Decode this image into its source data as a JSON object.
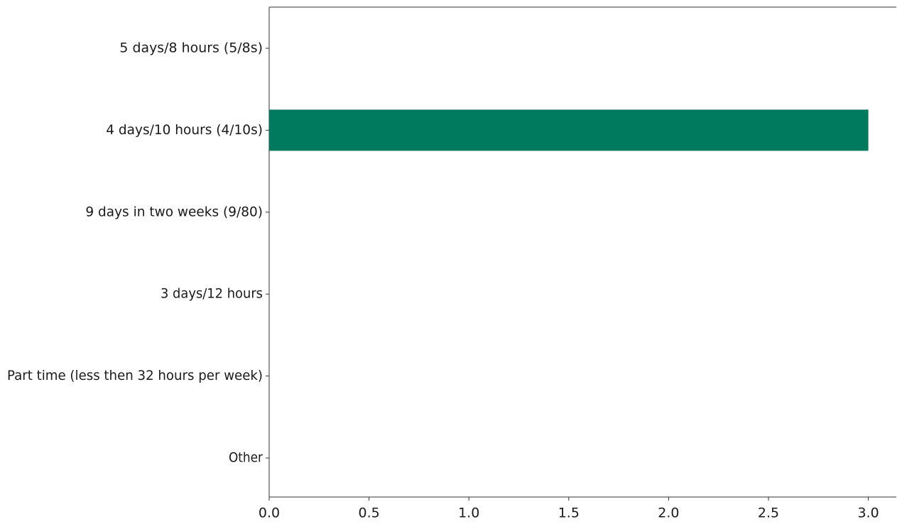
{
  "chart_data": {
    "type": "bar",
    "orientation": "horizontal",
    "categories": [
      "5 days/8 hours (5/8s)",
      "4 days/10 hours (4/10s)",
      "9 days in two weeks (9/80)",
      "3 days/12 hours",
      "Part time (less then 32 hours per week)",
      "Other"
    ],
    "values": [
      0,
      3,
      0,
      0,
      0,
      0
    ],
    "xlim": [
      0,
      3.14
    ],
    "xticks": [
      "0.0",
      "0.5",
      "1.0",
      "1.5",
      "2.0",
      "2.5",
      "3.0"
    ],
    "bar_color": "#007a5e",
    "grid": false
  }
}
